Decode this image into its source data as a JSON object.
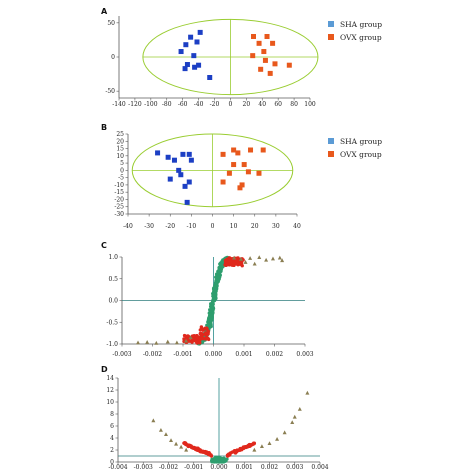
{
  "colors": {
    "sha": "#1c3fc4",
    "ovx": "#e8581c",
    "legend_sha": "#5b9bd5",
    "ellipse": "#9acd32",
    "axis": "#5a5a5a",
    "teal": "#2e9e6e",
    "red": "#e0281c",
    "triangle": "#8a7e52",
    "threshold": "#2e7d7d",
    "center_line": "#2a8a8a"
  },
  "chart_data": [
    {
      "panel": "A",
      "type": "scatter",
      "xlim": [
        -140,
        100
      ],
      "ylim": [
        -60,
        60
      ],
      "xticks": [
        "-140",
        "-120",
        "-100",
        "-80",
        "-60",
        "-40",
        "-20",
        "0",
        "20",
        "40",
        "60",
        "80",
        "100"
      ],
      "yticks": [
        "50",
        "0",
        "-50"
      ],
      "ellipse": {
        "cx": 0,
        "cy": 0,
        "rx": 110,
        "ry": 55
      },
      "legend": [
        "SHA group",
        "OVX group"
      ],
      "series": [
        {
          "name": "SHA group",
          "points": [
            [
              -38,
              36
            ],
            [
              -50,
              29
            ],
            [
              -56,
              18
            ],
            [
              -42,
              22
            ],
            [
              -62,
              8
            ],
            [
              -46,
              2
            ],
            [
              -54,
              -11
            ],
            [
              -45,
              -15
            ],
            [
              -57,
              -17
            ],
            [
              -26,
              -30
            ],
            [
              -40,
              -12
            ]
          ]
        },
        {
          "name": "OVX group",
          "points": [
            [
              29,
              30
            ],
            [
              46,
              30
            ],
            [
              36,
              20
            ],
            [
              53,
              20
            ],
            [
              42,
              8
            ],
            [
              28,
              2
            ],
            [
              44,
              -5
            ],
            [
              56,
              -10
            ],
            [
              74,
              -12
            ],
            [
              38,
              -18
            ],
            [
              50,
              -24
            ]
          ]
        }
      ]
    },
    {
      "panel": "B",
      "type": "scatter",
      "xlim": [
        -40,
        40
      ],
      "ylim": [
        -30,
        25
      ],
      "xticks": [
        "-40",
        "-30",
        "-20",
        "-10",
        "0",
        "10",
        "20",
        "30",
        "40"
      ],
      "yticks": [
        "25",
        "20",
        "15",
        "10",
        "5",
        "0",
        "-5",
        "-10",
        "-15",
        "-20",
        "-25",
        "-30"
      ],
      "ellipse": {
        "cx": 0,
        "cy": 0,
        "rx": 38,
        "ry": 25
      },
      "legend": [
        "SHA group",
        "OVX group"
      ],
      "series": [
        {
          "name": "SHA group",
          "points": [
            [
              -26,
              12
            ],
            [
              -21,
              9
            ],
            [
              -14,
              11
            ],
            [
              -11,
              11
            ],
            [
              -18,
              7
            ],
            [
              -10,
              7
            ],
            [
              -16,
              0
            ],
            [
              -15,
              -3
            ],
            [
              -20,
              -6
            ],
            [
              -11,
              -8
            ],
            [
              -13,
              -11
            ],
            [
              -12,
              -22
            ]
          ]
        },
        {
          "name": "OVX group",
          "points": [
            [
              5,
              11
            ],
            [
              10,
              14
            ],
            [
              12,
              12
            ],
            [
              18,
              14
            ],
            [
              24,
              14
            ],
            [
              10,
              4
            ],
            [
              15,
              4
            ],
            [
              8,
              -2
            ],
            [
              17,
              -1
            ],
            [
              22,
              -2
            ],
            [
              5,
              -8
            ],
            [
              14,
              -10
            ],
            [
              13,
              -12
            ]
          ]
        }
      ]
    },
    {
      "panel": "C",
      "type": "scatter",
      "xlim": [
        -0.004,
        0.004
      ],
      "ylim": [
        -1.0,
        1.0
      ],
      "xticks": [
        "-0.003",
        "-0.002",
        "-0.001",
        "0.000",
        "0.001",
        "0.002",
        "0.003"
      ],
      "yticks": [
        "1.0",
        "0.5",
        "0.0",
        "-0.5",
        "-1.0"
      ],
      "threshold_y": 0.0,
      "center_x": 0.0
    },
    {
      "panel": "D",
      "type": "scatter",
      "xlim": [
        -0.004,
        0.004
      ],
      "ylim": [
        0,
        14
      ],
      "xticks": [
        "-0.004",
        "-0.003",
        "-0.002",
        "-0.001",
        "0.000",
        "0.001",
        "0.002",
        "0.003",
        "0.004"
      ],
      "yticks": [
        "14",
        "12",
        "10",
        "8",
        "6",
        "4",
        "2",
        "0"
      ],
      "threshold_y": 1.0,
      "center_x": 0.0
    }
  ]
}
